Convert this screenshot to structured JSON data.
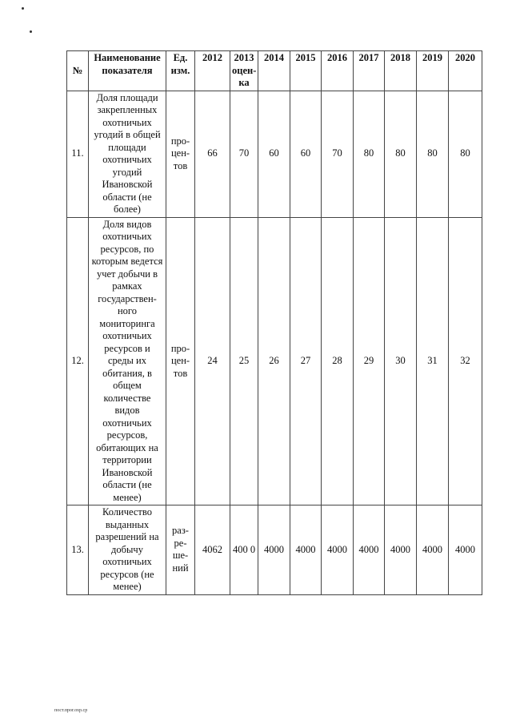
{
  "table": {
    "headers": [
      "№",
      "Наименование показателя",
      "Ед. изм.",
      "2012",
      "2013 оцен-ка",
      "2014",
      "2015",
      "2016",
      "2017",
      "2018",
      "2019",
      "2020"
    ],
    "rows": [
      {
        "no": "11.",
        "name": "Доля площади закрепленных охотничьих угодий в общей площади охотничьих угодий Ивановской области (не более)",
        "unit": "про-цен-тов",
        "values": [
          "66",
          "70",
          "60",
          "60",
          "70",
          "80",
          "80",
          "80",
          "80"
        ]
      },
      {
        "no": "12.",
        "name": "Доля видов охотничьих ресурсов, по которым ведется учет добычи в рамках государствен-ного мониторинга охотничьих ресурсов и среды их обитания, в общем количестве видов охотничьих ресурсов, обитающих на территории Ивановской области (не менее)",
        "unit": "про-цен-тов",
        "values": [
          "24",
          "25",
          "26",
          "27",
          "28",
          "29",
          "30",
          "31",
          "32"
        ]
      },
      {
        "no": "13.",
        "name": "Количество выданных разрешений на добычу охотничьих ресурсов (не менее)",
        "unit": "раз-ре-ше-ний",
        "values": [
          "4062",
          "400 0",
          "4000",
          "4000",
          "4000",
          "4000",
          "4000",
          "4000",
          "4000"
        ]
      }
    ]
  },
  "footer": "пост.прог.охр.ср"
}
